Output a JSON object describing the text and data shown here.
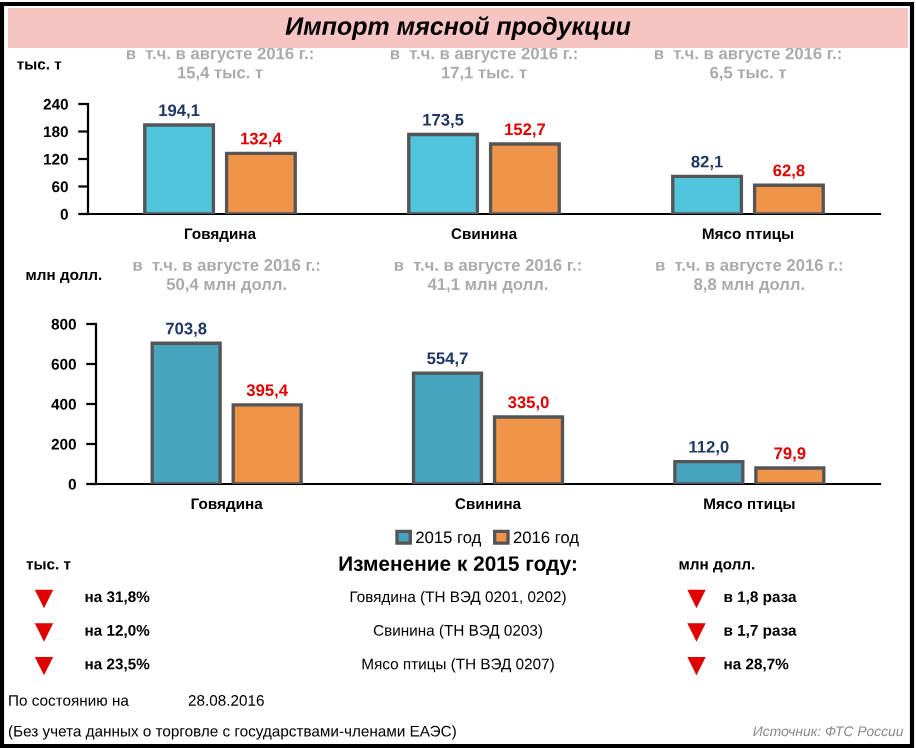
{
  "chart_data": [
    {
      "type": "bar",
      "title": "Импорт мясной продукции",
      "ylabel": "тыс. т",
      "categories": [
        "Говядина",
        "Свинина",
        "Мясо птицы"
      ],
      "series": [
        {
          "color": "#4fc4dc",
          "values": [
            194.1,
            173.5,
            82.1
          ],
          "value_labels": [
            "194,1",
            "173,5",
            "82,1"
          ]
        },
        {
          "color": "#ef9448",
          "values": [
            132.4,
            152.7,
            62.8
          ],
          "value_labels": [
            "132,4",
            "152,7",
            "62,8"
          ]
        }
      ],
      "ylim": [
        0,
        240
      ],
      "yticks": [
        0,
        60,
        120,
        180,
        240
      ],
      "grid": false,
      "legend": false,
      "annotations": [
        "в  т.ч. в августе 2016 г.:\n15,4 тыс. т",
        "в  т.ч. в августе 2016 г.:\n17,1 тыс. т",
        "в  т.ч. в августе 2016 г.:\n6,5 тыс. т"
      ]
    },
    {
      "type": "bar",
      "ylabel": "млн долл.",
      "categories": [
        "Говядина",
        "Свинина",
        "Мясо птицы"
      ],
      "series": [
        {
          "name": "2015 год",
          "color": "#47a4bf",
          "values": [
            703.8,
            554.7,
            112.0
          ],
          "value_labels": [
            "703,8",
            "554,7",
            "112,0"
          ]
        },
        {
          "name": "2016 год",
          "color": "#ef9448",
          "values": [
            395.4,
            335.0,
            79.9
          ],
          "value_labels": [
            "395,4",
            "335,0",
            "79,9"
          ]
        }
      ],
      "ylim": [
        0,
        800
      ],
      "yticks": [
        0,
        200,
        400,
        600,
        800
      ],
      "grid": false,
      "legend": "bottom",
      "annotations": [
        "в  т.ч. в августе 2016 г.:\n50,4 млн долл.",
        "в  т.ч. в августе 2016 г.:\n41,1 млн долл.",
        "в  т.ч. в августе 2016 г.:\n8,8 млн долл."
      ]
    },
    {
      "type": "other",
      "title": "Изменение к 2015 году:",
      "annotations": [
        "тыс. т",
        "млн долл.",
        "на 31,8%",
        "Говядина (ТН ВЭД 0201, 0202)",
        "в 1,8 раза",
        "на 12,0%",
        "Свинина (ТН ВЭД 0203)",
        "в 1,7 раза",
        "на 23,5%",
        "Мясо птицы (ТН ВЭД 0207)",
        "на 28,7%",
        "По состоянию на",
        "28.08.2016",
        "(Без учета данных о торговле с государствами-членами ЕАЭС)",
        "Источник: ФТС России"
      ]
    }
  ]
}
